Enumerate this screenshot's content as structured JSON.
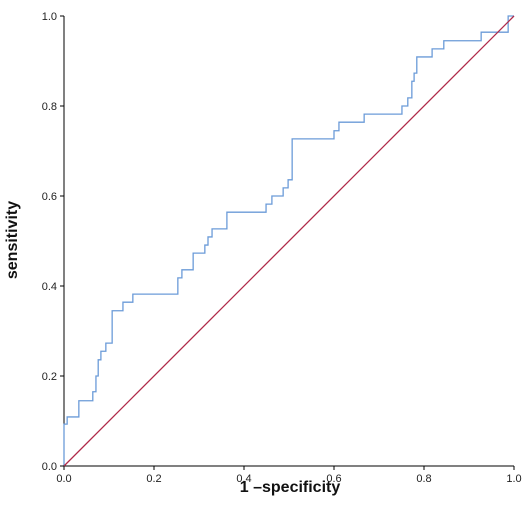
{
  "chart_data": {
    "type": "line",
    "title": "",
    "xlabel": "1 –specificity",
    "ylabel": "sensitivity",
    "xlim": [
      0,
      1
    ],
    "ylim": [
      0,
      1
    ],
    "x_ticks": [
      "0.0",
      "0.2",
      "0.4",
      "0.6",
      "0.8",
      "1.0"
    ],
    "y_ticks": [
      "0.0",
      "0.2",
      "0.4",
      "0.6",
      "0.8",
      "1.0"
    ],
    "grid": false,
    "legend": "none",
    "series": [
      {
        "color": "#6b9bd8",
        "points": [
          [
            0.0,
            0.0
          ],
          [
            0.0,
            0.093
          ],
          [
            0.007,
            0.093
          ],
          [
            0.007,
            0.109
          ],
          [
            0.033,
            0.109
          ],
          [
            0.033,
            0.145
          ],
          [
            0.064,
            0.145
          ],
          [
            0.064,
            0.165
          ],
          [
            0.071,
            0.165
          ],
          [
            0.071,
            0.2
          ],
          [
            0.076,
            0.2
          ],
          [
            0.076,
            0.236
          ],
          [
            0.082,
            0.236
          ],
          [
            0.082,
            0.255
          ],
          [
            0.093,
            0.255
          ],
          [
            0.093,
            0.273
          ],
          [
            0.107,
            0.273
          ],
          [
            0.107,
            0.345
          ],
          [
            0.131,
            0.345
          ],
          [
            0.131,
            0.364
          ],
          [
            0.153,
            0.364
          ],
          [
            0.153,
            0.382
          ],
          [
            0.253,
            0.382
          ],
          [
            0.253,
            0.418
          ],
          [
            0.262,
            0.418
          ],
          [
            0.262,
            0.436
          ],
          [
            0.287,
            0.436
          ],
          [
            0.287,
            0.473
          ],
          [
            0.313,
            0.473
          ],
          [
            0.313,
            0.491
          ],
          [
            0.32,
            0.491
          ],
          [
            0.32,
            0.509
          ],
          [
            0.329,
            0.509
          ],
          [
            0.329,
            0.527
          ],
          [
            0.362,
            0.527
          ],
          [
            0.362,
            0.564
          ],
          [
            0.449,
            0.564
          ],
          [
            0.449,
            0.582
          ],
          [
            0.462,
            0.582
          ],
          [
            0.462,
            0.6
          ],
          [
            0.487,
            0.6
          ],
          [
            0.487,
            0.618
          ],
          [
            0.498,
            0.618
          ],
          [
            0.498,
            0.636
          ],
          [
            0.507,
            0.636
          ],
          [
            0.507,
            0.727
          ],
          [
            0.6,
            0.727
          ],
          [
            0.6,
            0.745
          ],
          [
            0.611,
            0.745
          ],
          [
            0.611,
            0.764
          ],
          [
            0.667,
            0.764
          ],
          [
            0.667,
            0.782
          ],
          [
            0.751,
            0.782
          ],
          [
            0.751,
            0.8
          ],
          [
            0.764,
            0.8
          ],
          [
            0.764,
            0.818
          ],
          [
            0.773,
            0.818
          ],
          [
            0.773,
            0.855
          ],
          [
            0.778,
            0.855
          ],
          [
            0.778,
            0.873
          ],
          [
            0.784,
            0.873
          ],
          [
            0.784,
            0.909
          ],
          [
            0.818,
            0.909
          ],
          [
            0.818,
            0.927
          ],
          [
            0.844,
            0.927
          ],
          [
            0.844,
            0.945
          ],
          [
            0.927,
            0.945
          ],
          [
            0.927,
            0.964
          ],
          [
            0.987,
            0.964
          ],
          [
            0.987,
            1.0
          ],
          [
            1.0,
            1.0
          ]
        ]
      },
      {
        "color": "#b02a49",
        "points": [
          [
            0,
            0
          ],
          [
            1,
            1
          ]
        ]
      }
    ]
  },
  "colors": {
    "roc_curve": "#6b9bd8",
    "reference_line": "#b02a49",
    "axis": "#000000"
  }
}
